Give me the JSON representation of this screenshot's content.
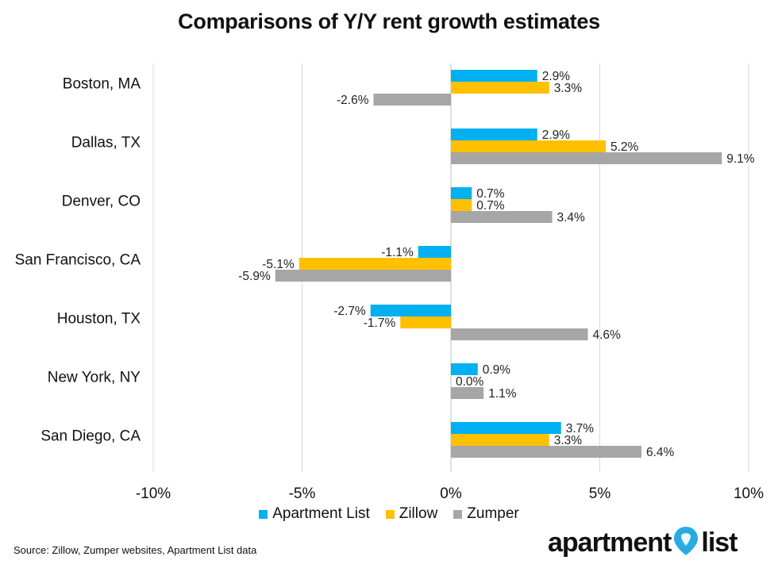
{
  "chart_data": {
    "type": "bar",
    "orientation": "horizontal",
    "title": "Comparisons of Y/Y rent growth estimates",
    "categories": [
      "Boston, MA",
      "Dallas, TX",
      "Denver, CO",
      "San Francisco, CA",
      "Houston, TX",
      "New York, NY",
      "San Diego, CA"
    ],
    "series": [
      {
        "name": "Apartment List",
        "color": "#00b0f0",
        "values": [
          2.9,
          2.9,
          0.7,
          -1.1,
          -2.7,
          0.9,
          3.7
        ],
        "labels": [
          "2.9%",
          "2.9%",
          "0.7%",
          "-1.1%",
          "-2.7%",
          "0.9%",
          "3.7%"
        ]
      },
      {
        "name": "Zillow",
        "color": "#ffc000",
        "values": [
          3.3,
          5.2,
          0.7,
          -5.1,
          -1.7,
          0.0,
          3.3
        ],
        "labels": [
          "3.3%",
          "5.2%",
          "0.7%",
          "-5.1%",
          "-1.7%",
          "0.0%",
          "3.3%"
        ]
      },
      {
        "name": "Zumper",
        "color": "#a6a6a6",
        "values": [
          -2.6,
          9.1,
          3.4,
          -5.9,
          4.6,
          1.1,
          6.4
        ],
        "labels": [
          "-2.6%",
          "9.1%",
          "3.4%",
          "-5.9%",
          "4.6%",
          "1.1%",
          "6.4%"
        ]
      }
    ],
    "xlim": [
      -10,
      10
    ],
    "xticks": [
      -10,
      -5,
      0,
      5,
      10
    ],
    "xtick_labels": [
      "-10%",
      "-5%",
      "0%",
      "5%",
      "10%"
    ],
    "grid": "vertical",
    "legend_position": "bottom"
  },
  "footer": {
    "source": "Source: Zillow, Zumper websites, Apartment List data",
    "logo_left": "apartment",
    "logo_right": "list",
    "pin_color": "#29abe2"
  }
}
